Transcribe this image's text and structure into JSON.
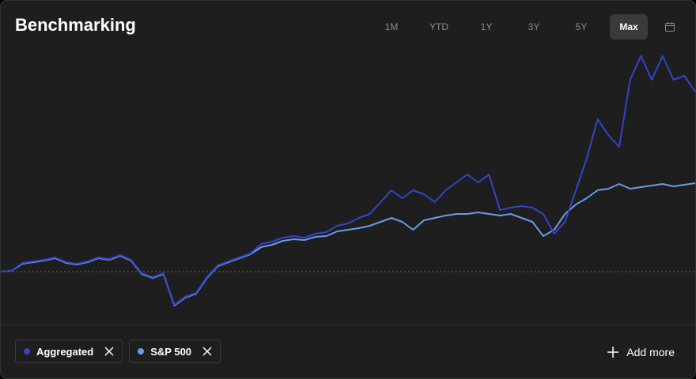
{
  "header": {
    "title": "Benchmarking"
  },
  "range_buttons": [
    "1M",
    "YTD",
    "1Y",
    "3Y",
    "5Y",
    "Max"
  ],
  "selected_range": 5,
  "add_more": "Add more",
  "chart_data": {
    "type": "line",
    "ylim": [
      -25,
      140
    ],
    "baseline": 0,
    "series": [
      {
        "name": "Aggregated",
        "color": "#3543c9",
        "values": [
          0,
          0.5,
          5.5,
          6.5,
          7.5,
          9,
          6,
          5,
          6.5,
          9,
          8,
          10.5,
          7.5,
          -1,
          -3.5,
          -1,
          -21,
          -16,
          -13.5,
          -3.5,
          4,
          6.5,
          9,
          11.5,
          17.5,
          19,
          21.5,
          22.5,
          21.5,
          24,
          25,
          29,
          30.5,
          34,
          36.5,
          44,
          51.5,
          46.5,
          51.5,
          49,
          44,
          51.5,
          56.5,
          61.5,
          56.5,
          61.5,
          39,
          40.5,
          41.5,
          40.5,
          36.5,
          24,
          31.5,
          51.5,
          71.5,
          96.5,
          86.5,
          79,
          121.5,
          136.5,
          121.5,
          136.5,
          121.5,
          124,
          114
        ]
      },
      {
        "name": "S&P 500",
        "color": "#6b9ae6",
        "values": [
          0,
          0.5,
          5,
          6,
          7,
          8.5,
          5.5,
          4.5,
          6,
          8.5,
          7.5,
          10,
          7,
          -1.5,
          -4,
          -1.5,
          -21.5,
          -16.5,
          -14,
          -4,
          3.5,
          6,
          8.5,
          11,
          15.5,
          17,
          19.5,
          20.5,
          20,
          22,
          22.5,
          25.5,
          26.5,
          27.5,
          29,
          31.5,
          34,
          31.5,
          26.5,
          32.5,
          34,
          35.5,
          36.5,
          36.5,
          37.5,
          36.5,
          35.5,
          36.5,
          34,
          31.5,
          22.5,
          26.5,
          36.5,
          42.5,
          46.5,
          51.5,
          52.5,
          55.5,
          52.5,
          53.5,
          54.5,
          55.5,
          54,
          55,
          56
        ]
      }
    ]
  }
}
